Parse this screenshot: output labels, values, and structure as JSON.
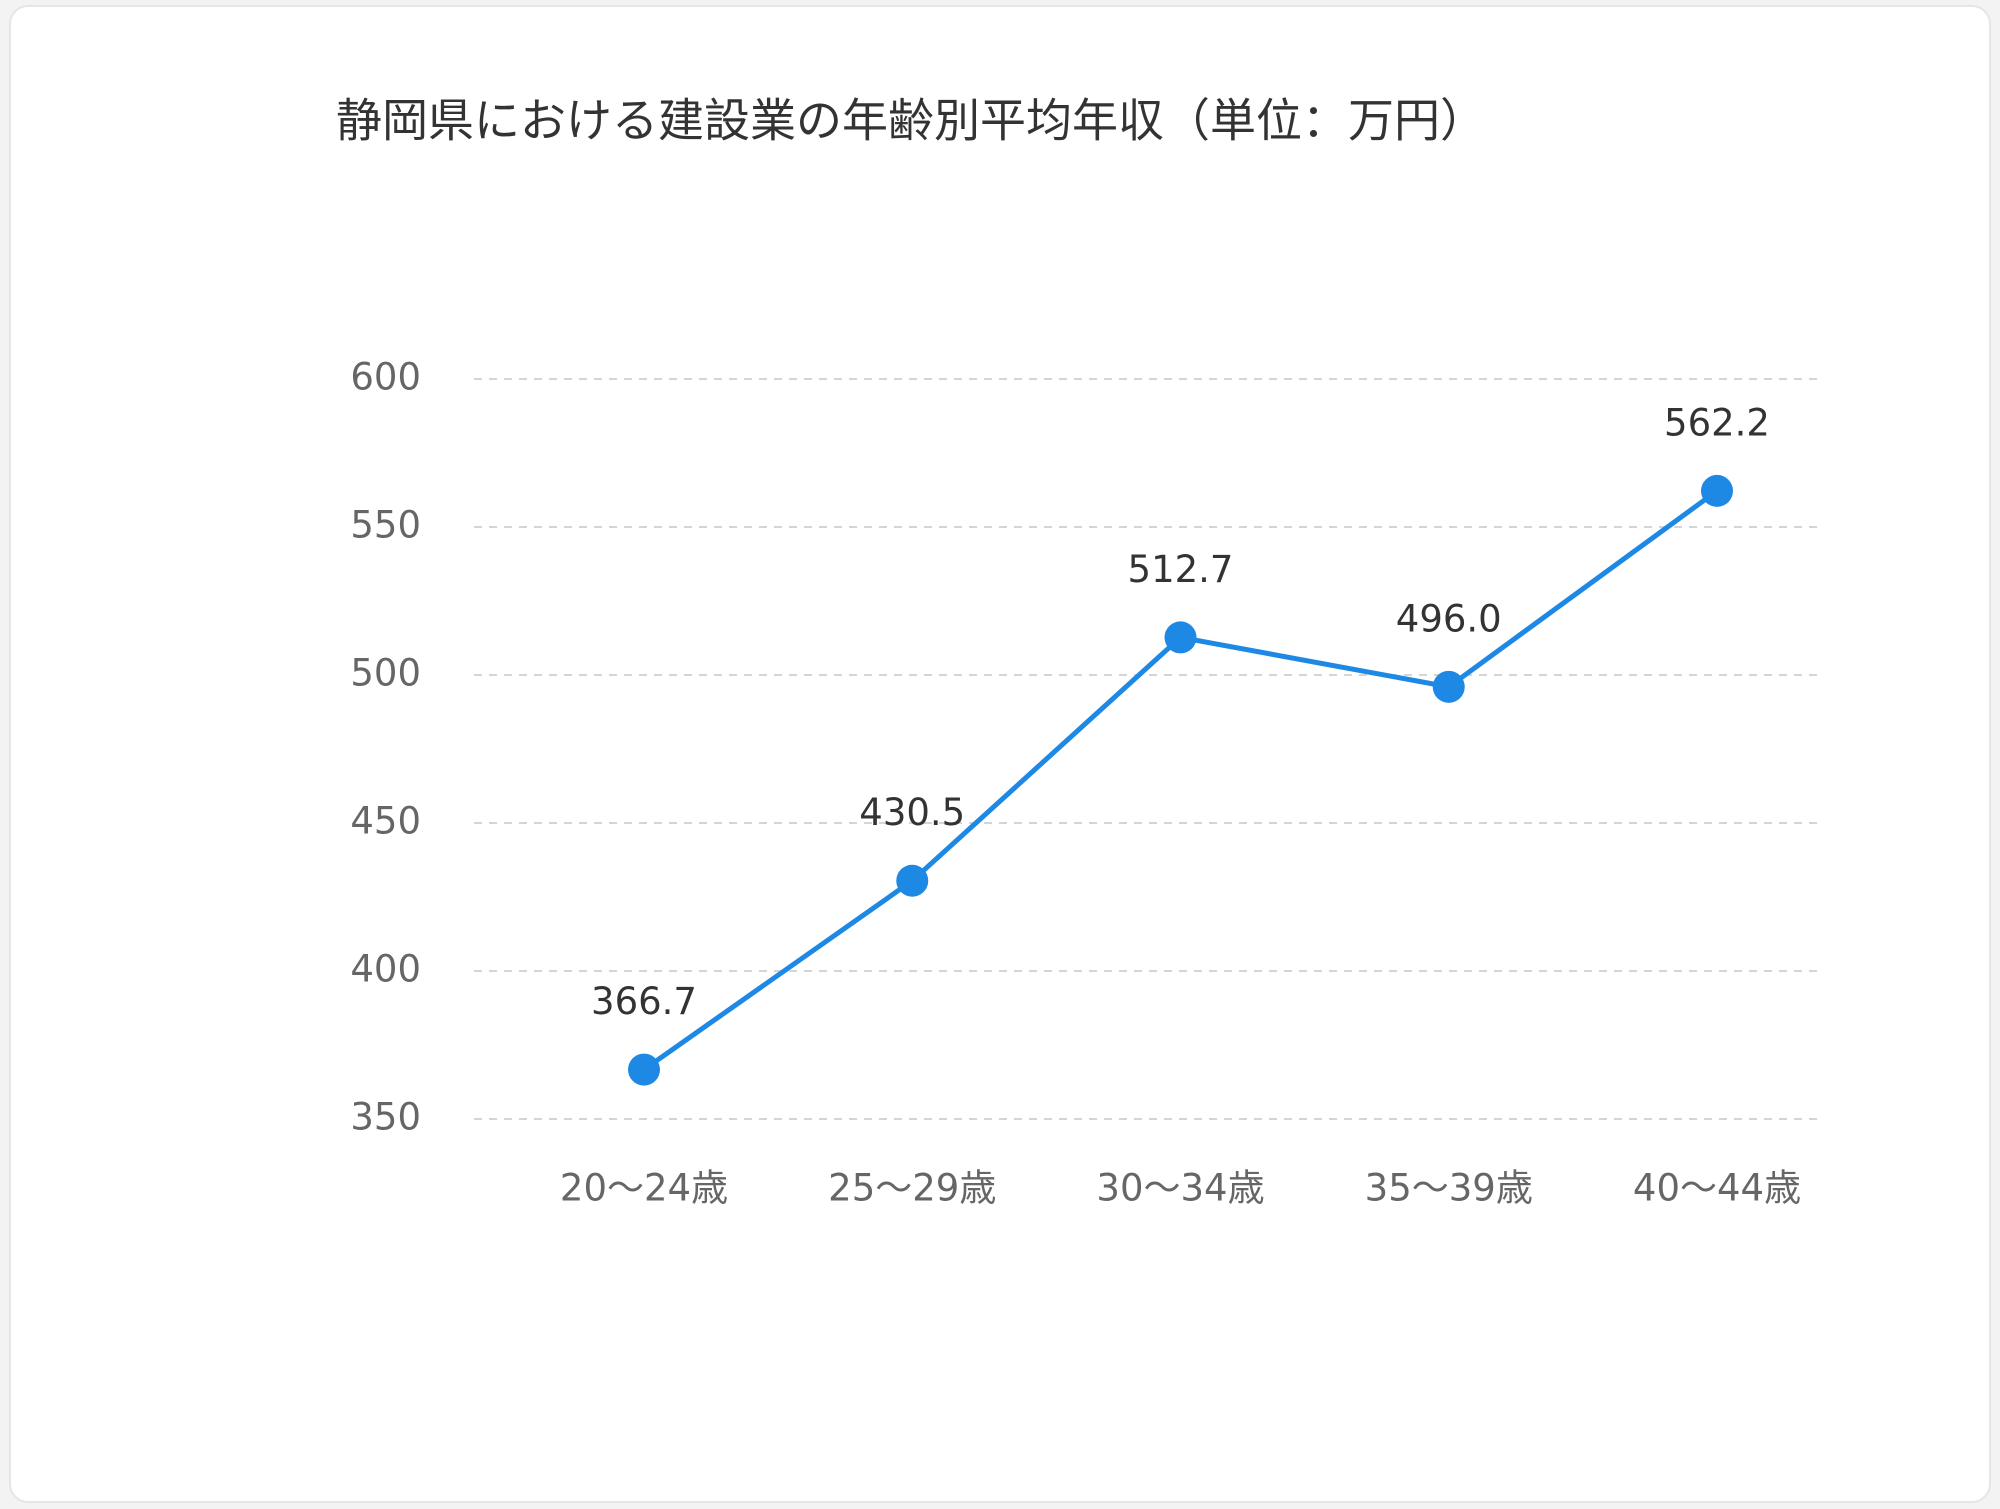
{
  "chart_data": {
    "type": "line",
    "title": "静岡県における建設業の年齢別平均年収（単位：万円）",
    "categories": [
      "20〜24歳",
      "25〜29歳",
      "30〜34歳",
      "35〜39歳",
      "40〜44歳"
    ],
    "series": [
      {
        "color": "#1e88e5",
        "values": [
          366.7,
          430.5,
          512.7,
          496.0,
          562.2
        ],
        "value_labels": [
          "366.7",
          "430.5",
          "512.7",
          "496.0",
          "562.2"
        ]
      }
    ],
    "ylim": [
      350,
      600
    ],
    "yticks": [
      350,
      400,
      450,
      500,
      550,
      600
    ],
    "grid": true
  }
}
